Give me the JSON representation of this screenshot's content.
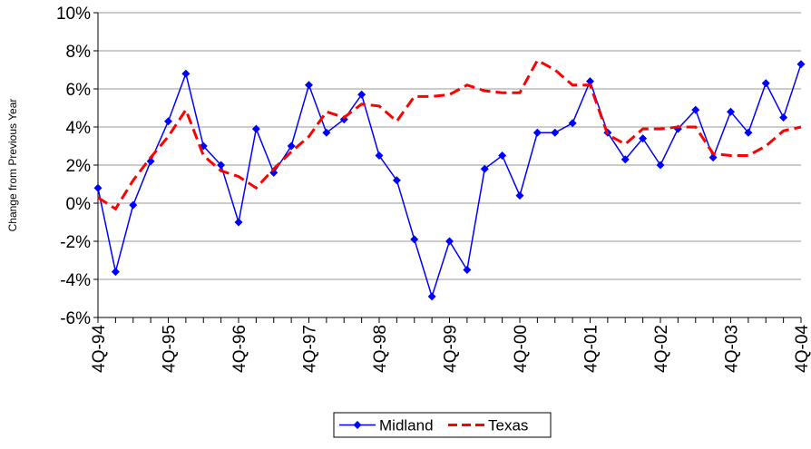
{
  "chart_data": {
    "type": "line",
    "y_label": "Change from Previous Year",
    "categories": [
      "4Q-94",
      null,
      null,
      null,
      "4Q-95",
      null,
      null,
      null,
      "4Q-96",
      null,
      null,
      null,
      "4Q-97",
      null,
      null,
      null,
      "4Q-98",
      null,
      null,
      null,
      "4Q-99",
      null,
      null,
      null,
      "4Q-00",
      null,
      null,
      null,
      "4Q-01",
      null,
      null,
      null,
      "4Q-02",
      null,
      null,
      null,
      "4Q-03",
      null,
      null,
      null,
      "4Q-04"
    ],
    "series": [
      {
        "name": "Midland",
        "color": "#0000ff",
        "marker": "diamond",
        "dash": false,
        "values": [
          0.8,
          -3.6,
          -0.1,
          2.2,
          4.3,
          6.8,
          3.0,
          2.0,
          -1.0,
          3.9,
          1.6,
          3.0,
          6.2,
          3.7,
          4.4,
          5.7,
          2.5,
          1.2,
          -1.9,
          -4.9,
          -2.0,
          -3.5,
          1.8,
          2.5,
          0.4,
          3.7,
          3.7,
          4.2,
          6.4,
          3.7,
          2.3,
          3.4,
          2.0,
          3.9,
          4.9,
          2.4,
          4.8,
          3.7,
          6.3,
          4.5,
          7.3
        ]
      },
      {
        "name": "Texas",
        "color": "#ff0000",
        "marker": "none",
        "dash": true,
        "values": [
          0.3,
          -0.3,
          1.2,
          2.4,
          3.5,
          4.9,
          2.5,
          1.7,
          1.4,
          0.8,
          1.8,
          2.7,
          3.5,
          4.8,
          4.5,
          5.2,
          5.1,
          4.3,
          5.6,
          5.6,
          5.7,
          6.2,
          5.9,
          5.8,
          5.8,
          7.5,
          7.0,
          6.2,
          6.2,
          3.6,
          3.1,
          3.9,
          3.9,
          4.0,
          4.0,
          2.6,
          2.5,
          2.5,
          3.0,
          3.8,
          4.0
        ]
      }
    ],
    "ylim": [
      -6,
      10
    ],
    "yticks": [
      {
        "value": -6,
        "label": "-6%"
      },
      {
        "value": -4,
        "label": "-4%"
      },
      {
        "value": -2,
        "label": "-2%"
      },
      {
        "value": 0,
        "label": "0%"
      },
      {
        "value": 2,
        "label": "2%"
      },
      {
        "value": 4,
        "label": "4%"
      },
      {
        "value": 6,
        "label": "6%"
      },
      {
        "value": 8,
        "label": "8%"
      },
      {
        "value": 10,
        "label": "10%"
      }
    ],
    "grid": true,
    "legend": "bottom"
  }
}
